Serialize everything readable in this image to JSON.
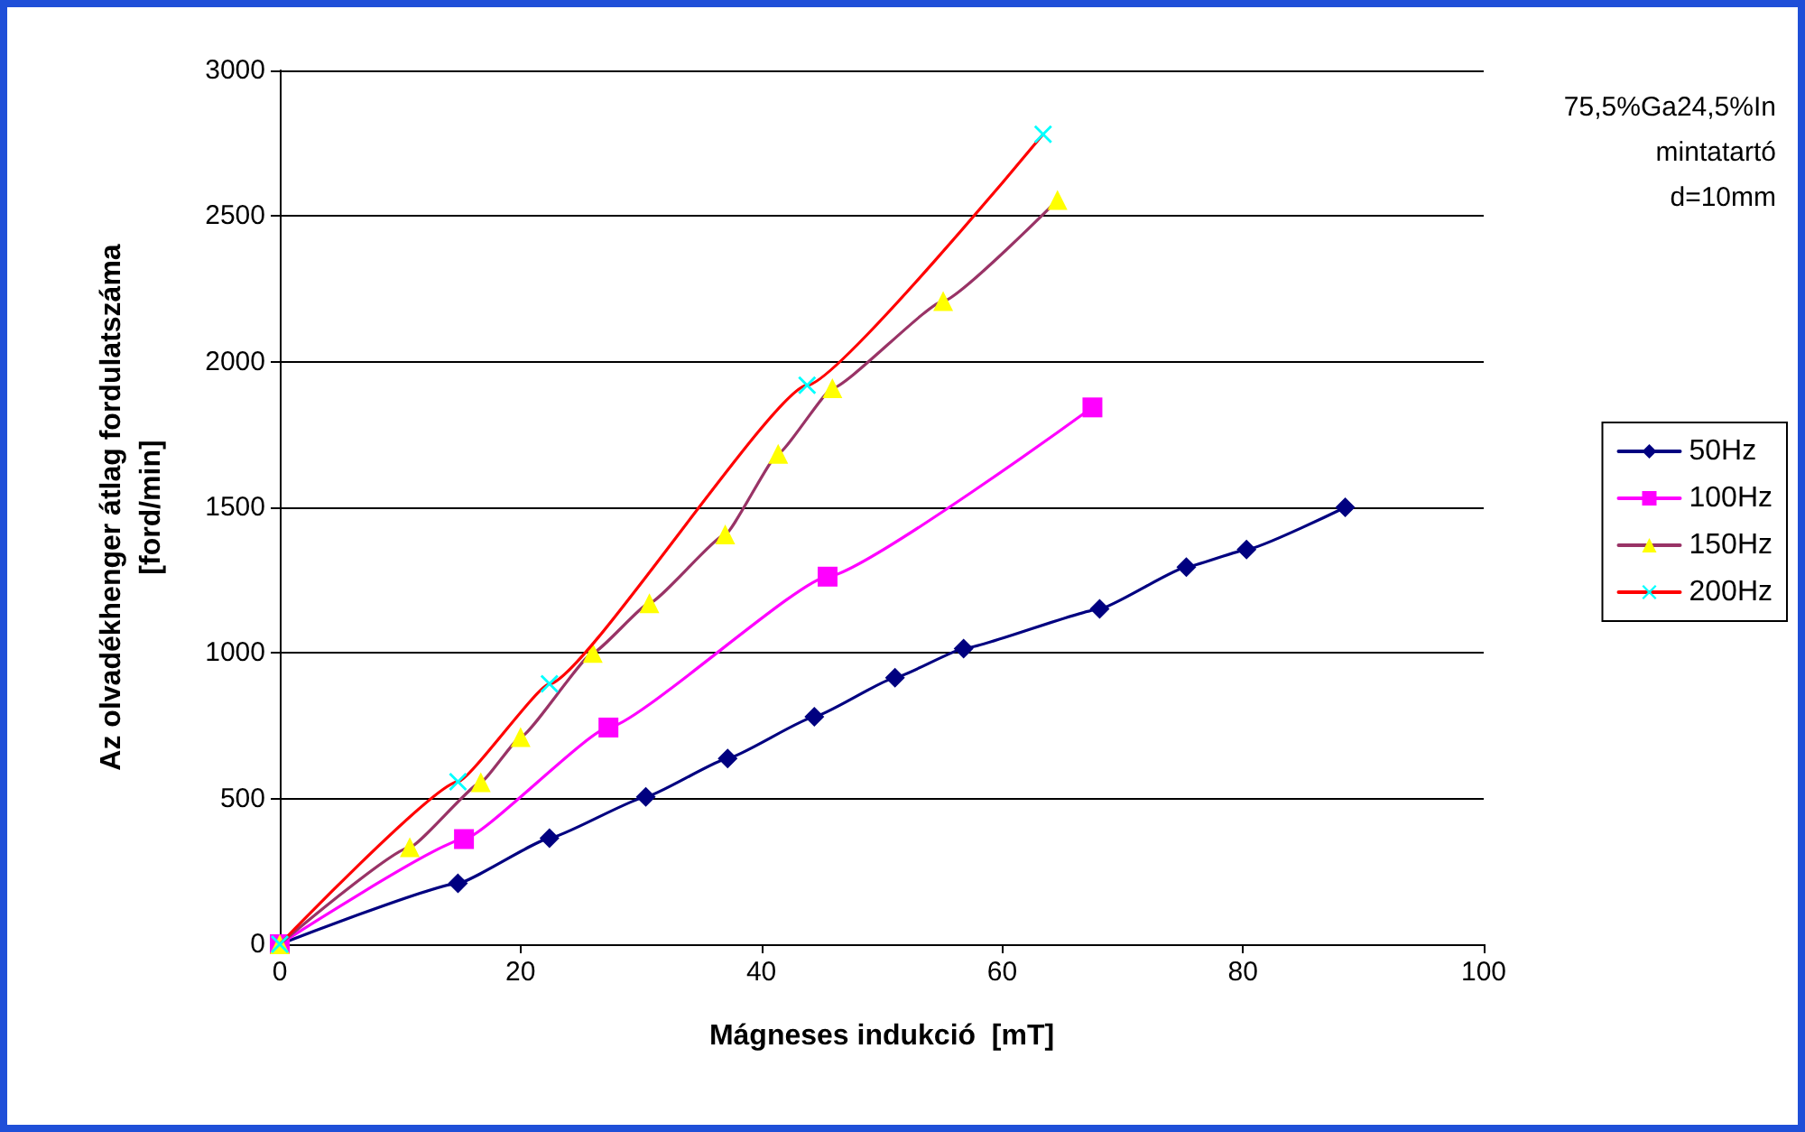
{
  "chart_data": {
    "type": "line",
    "xlabel": "Mágneses indukció  [mT]",
    "ylabel": "Az olvadékhenger átlag fordulatszáma\n[ford/min]",
    "annotations": [
      "75,5%Ga24,5%In",
      "mintatartó",
      "d=10mm"
    ],
    "xlim": [
      0,
      100
    ],
    "xticks": [
      0,
      20,
      40,
      60,
      80,
      100
    ],
    "ylim": [
      0,
      3000
    ],
    "yticks": [
      0,
      500,
      1000,
      1500,
      2000,
      2500,
      3000
    ],
    "grid": "y",
    "legend": "right",
    "line_style": "solid",
    "series": [
      {
        "name": "50Hz",
        "color": "#000080",
        "marker": "diamond",
        "x": [
          0,
          14.8,
          22.4,
          30.4,
          37.2,
          44.4,
          51.1,
          56.8,
          68.1,
          75.3,
          80.3,
          88.5
        ],
        "values": [
          0,
          209,
          364,
          506,
          638,
          781,
          915,
          1015,
          1151,
          1295,
          1355,
          1500
        ]
      },
      {
        "name": "100Hz",
        "color": "#ff00ff",
        "marker": "square",
        "x": [
          0,
          15.3,
          27.3,
          45.5,
          67.5
        ],
        "values": [
          0,
          361,
          744,
          1262,
          1843
        ]
      },
      {
        "name": "150Hz",
        "color": "#993366",
        "colors": [
          "#ffff00",
          "#ffff00",
          "#ffff00",
          "#ffff00",
          "#ffff00",
          "#ffff00",
          "#ffff00",
          "#ffff00",
          "#ffff00",
          "#ffff00",
          "#ffff00"
        ],
        "marker": "triangle",
        "x": [
          0,
          10.8,
          16.7,
          20.0,
          26.0,
          30.7,
          37.0,
          41.4,
          45.9,
          55.1,
          64.6
        ],
        "values": [
          0,
          333,
          556,
          711,
          1000,
          1171,
          1407,
          1684,
          1909,
          2208,
          2555
        ]
      },
      {
        "name": "200Hz",
        "color": "#ff0000",
        "colors": [
          "#00ffff",
          "#00ffff",
          "#00ffff",
          "#00ffff",
          "#00ffff"
        ],
        "marker": "cross",
        "x": [
          0,
          14.8,
          22.4,
          43.8,
          63.4
        ],
        "values": [
          0,
          558,
          894,
          1919,
          2781
        ]
      }
    ]
  }
}
